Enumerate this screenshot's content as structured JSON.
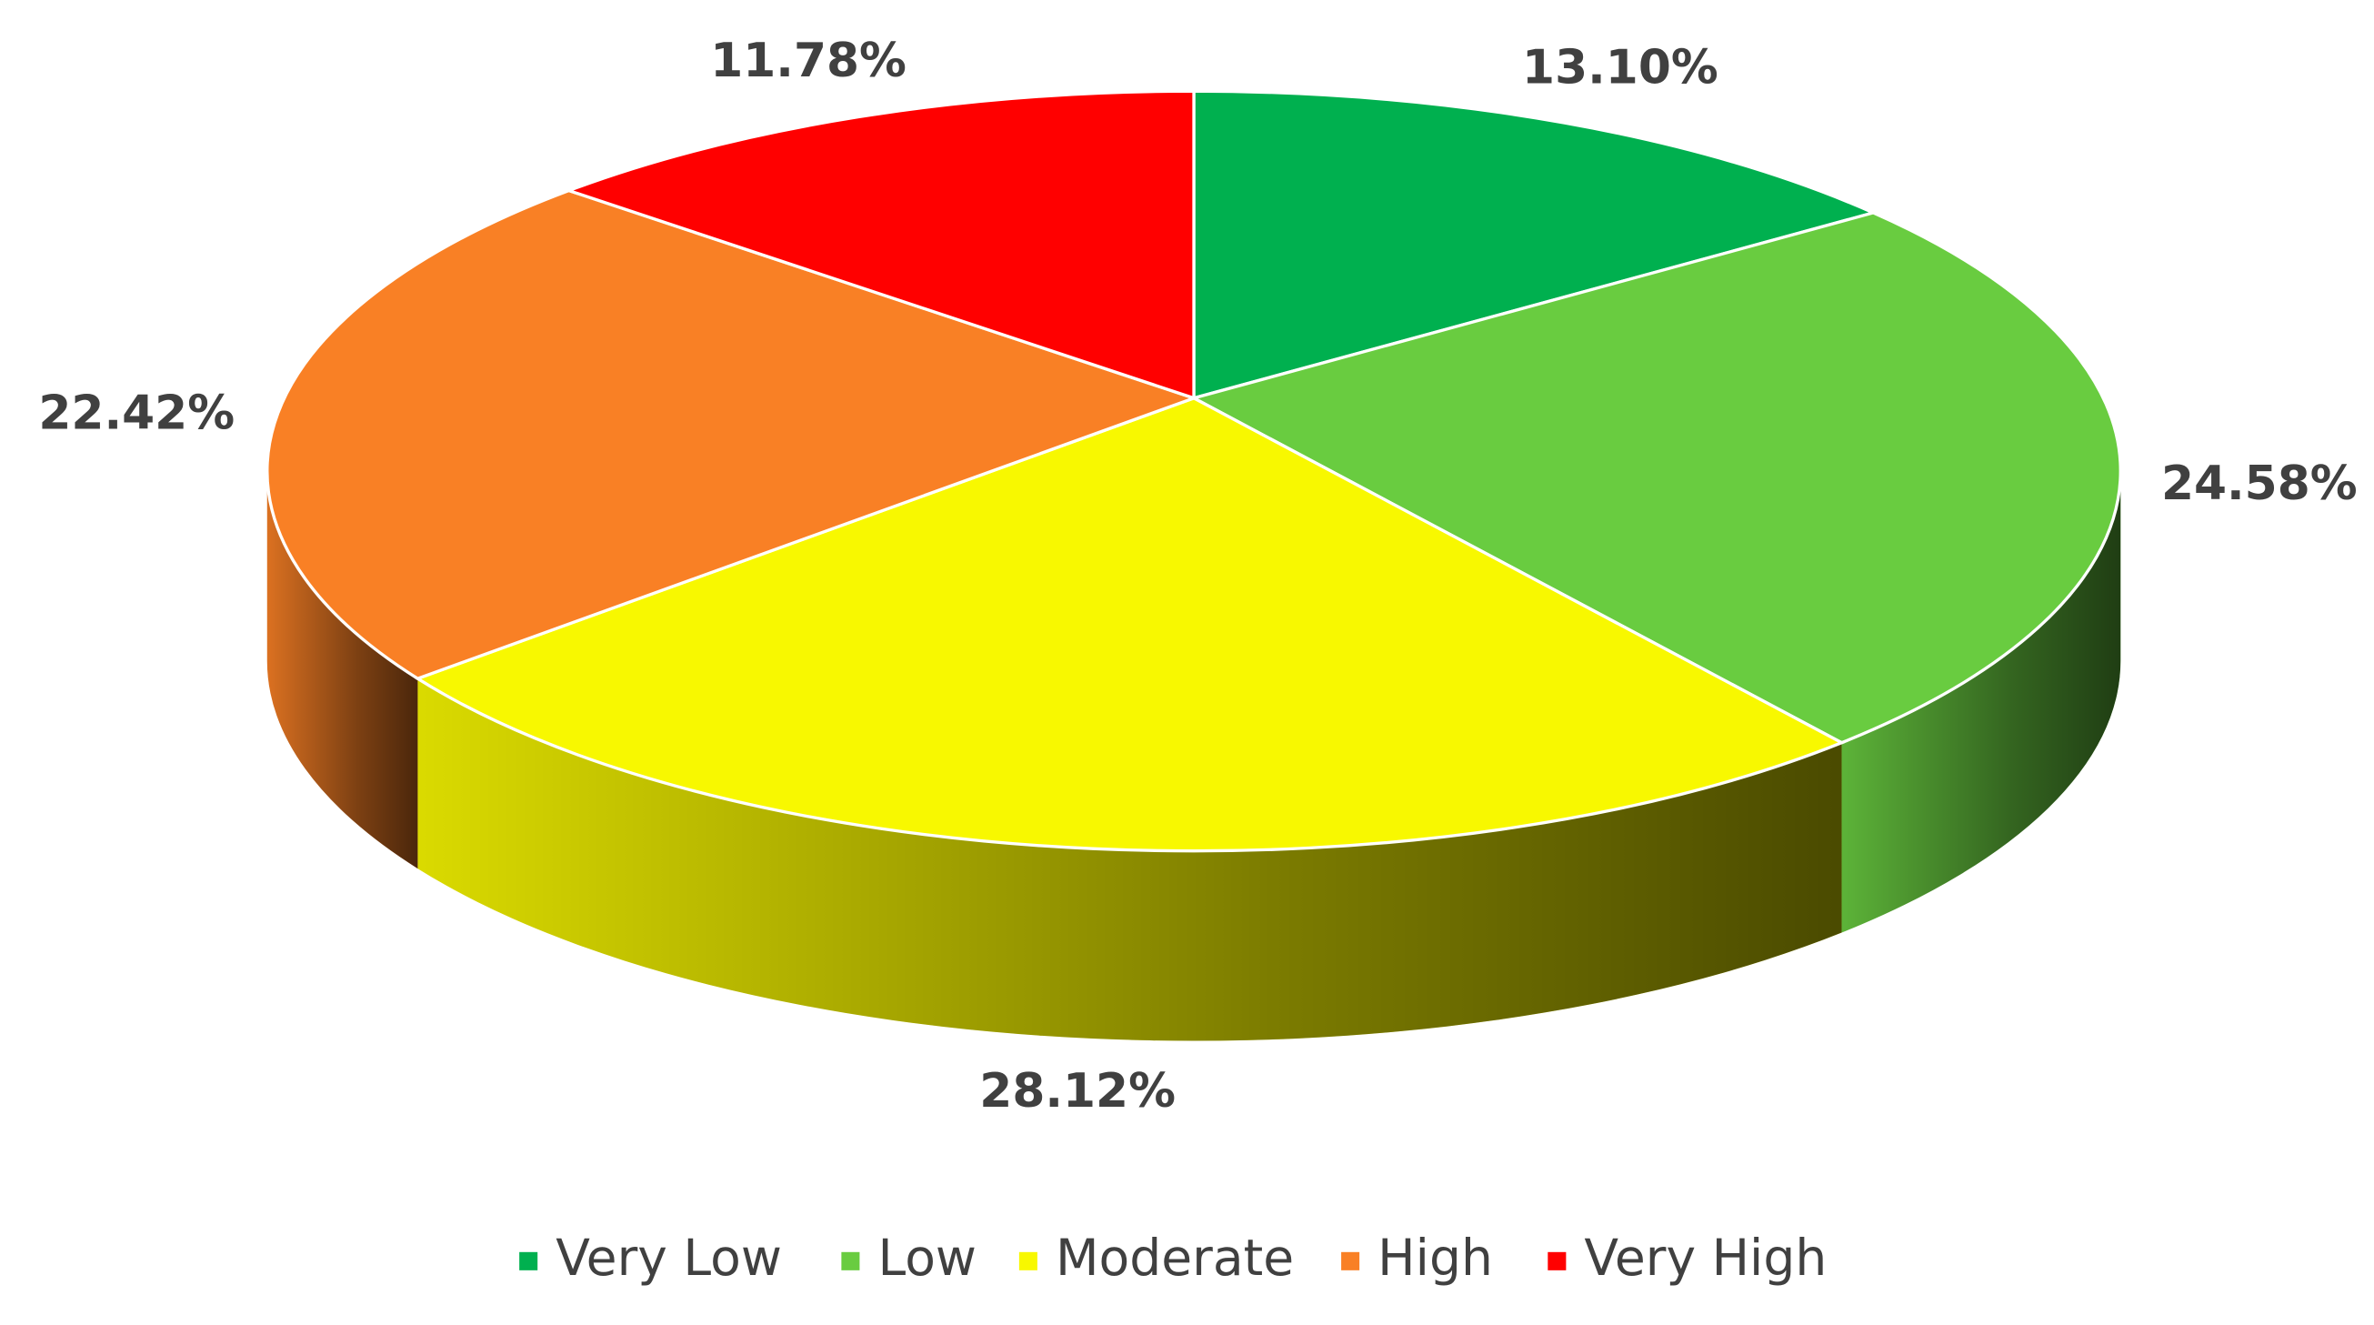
{
  "chart_data": {
    "type": "pie",
    "categories": [
      "Very Low",
      "Low",
      "Moderate",
      "High",
      "Very High"
    ],
    "values": [
      13.1,
      24.58,
      28.12,
      22.42,
      11.78
    ],
    "value_labels": [
      "13.10%",
      "24.58%",
      "28.12%",
      "22.42%",
      "11.78%"
    ],
    "colors": [
      "#00b04f",
      "#69cc40",
      "#f8f800",
      "#f98025",
      "#ff0000"
    ],
    "legend": "bottom"
  }
}
